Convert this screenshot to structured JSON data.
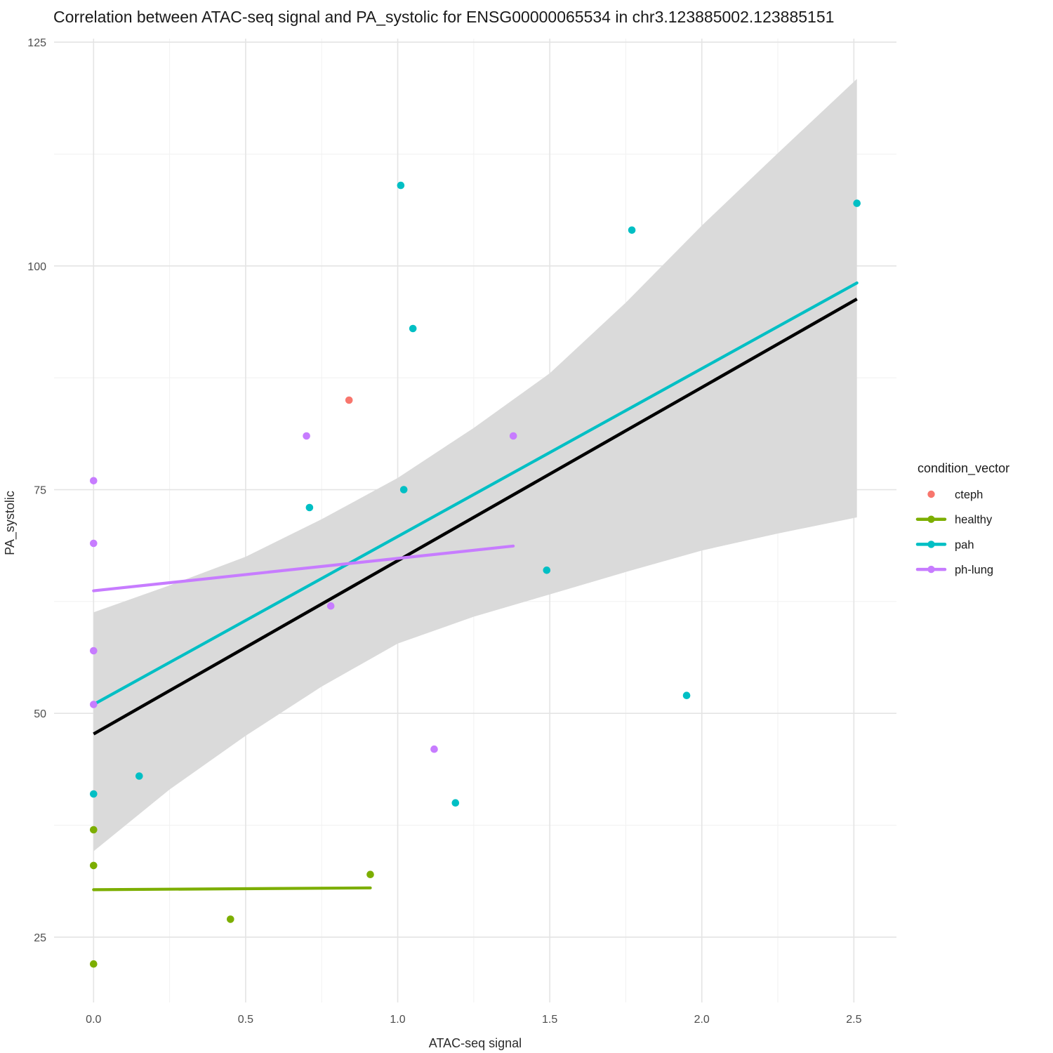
{
  "chart_data": {
    "type": "scatter",
    "title": "Correlation between ATAC-seq signal and PA_systolic for ENSG00000065534 in chr3.123885002.123885151",
    "xlabel": "ATAC-seq signal",
    "ylabel": "PA_systolic",
    "xlim": [
      -0.13,
      2.64
    ],
    "ylim": [
      17.7,
      125.4
    ],
    "x_ticks": [
      0.0,
      0.5,
      1.0,
      1.5,
      2.0,
      2.5
    ],
    "x_tick_labels": [
      "0.0",
      "0.5",
      "1.0",
      "1.5",
      "2.0",
      "2.5"
    ],
    "x_minor_ticks": [
      0.25,
      0.75,
      1.25,
      1.75,
      2.25
    ],
    "y_ticks": [
      25,
      50,
      75,
      100,
      125
    ],
    "y_tick_labels": [
      "25",
      "50",
      "75",
      "100",
      "125"
    ],
    "y_minor_ticks": [
      37.5,
      62.5,
      87.5,
      112.5
    ],
    "grid": true,
    "legend_position": "right",
    "series": [
      {
        "name": "cteph",
        "color": "#F8766D",
        "points": [
          [
            0.84,
            85
          ]
        ],
        "regression_line": null
      },
      {
        "name": "healthy",
        "color": "#7CAE00",
        "points": [
          [
            0,
            22
          ],
          [
            0,
            33
          ],
          [
            0,
            37
          ],
          [
            0.45,
            27
          ],
          [
            0.91,
            32
          ]
        ],
        "regression_line": [
          0,
          30.3,
          0.91,
          30.5
        ]
      },
      {
        "name": "pah",
        "color": "#00BFC4",
        "points": [
          [
            0,
            41
          ],
          [
            0.15,
            43
          ],
          [
            0.71,
            73
          ],
          [
            1.01,
            109
          ],
          [
            1.02,
            75
          ],
          [
            1.05,
            93
          ],
          [
            1.19,
            40
          ],
          [
            1.49,
            66
          ],
          [
            1.77,
            104
          ],
          [
            1.95,
            52
          ],
          [
            2.51,
            107
          ]
        ],
        "regression_line": [
          0,
          51.0,
          2.51,
          98.1
        ]
      },
      {
        "name": "ph-lung",
        "color": "#C77CFF",
        "points": [
          [
            0,
            51
          ],
          [
            0,
            57
          ],
          [
            0,
            69
          ],
          [
            0,
            76
          ],
          [
            0.7,
            81
          ],
          [
            0.78,
            62
          ],
          [
            1.12,
            46
          ],
          [
            1.38,
            81
          ]
        ],
        "regression_line": [
          0,
          63.7,
          1.38,
          68.7
        ]
      }
    ],
    "trend": {
      "name": "overall-fit",
      "color": "#000000",
      "line": [
        0,
        47.7,
        2.51,
        96.3
      ]
    },
    "ribbon": {
      "color": "#DADADA",
      "upper": [
        [
          0,
          61.3
        ],
        [
          0.25,
          64.3
        ],
        [
          0.5,
          67.5
        ],
        [
          0.75,
          71.7
        ],
        [
          1.0,
          76.3
        ],
        [
          1.25,
          81.9
        ],
        [
          1.5,
          88.0
        ],
        [
          1.75,
          95.9
        ],
        [
          2.0,
          104.5
        ],
        [
          2.25,
          112.6
        ],
        [
          2.51,
          120.9
        ]
      ],
      "lower": [
        [
          0,
          34.6
        ],
        [
          0.25,
          41.5
        ],
        [
          0.5,
          47.5
        ],
        [
          0.75,
          53.0
        ],
        [
          1.0,
          57.8
        ],
        [
          1.25,
          60.8
        ],
        [
          1.5,
          63.3
        ],
        [
          1.75,
          65.8
        ],
        [
          2.0,
          68.2
        ],
        [
          2.25,
          70.1
        ],
        [
          2.51,
          71.9
        ]
      ]
    },
    "legend": {
      "title": "condition_vector",
      "items": [
        {
          "label": "cteph",
          "color": "#F8766D",
          "has_line": false
        },
        {
          "label": "healthy",
          "color": "#7CAE00",
          "has_line": true
        },
        {
          "label": "pah",
          "color": "#00BFC4",
          "has_line": true
        },
        {
          "label": "ph-lung",
          "color": "#C77CFF",
          "has_line": true
        }
      ]
    },
    "style": {
      "background": "#FFFFFF",
      "grid_major_color": "#E4E4E4",
      "grid_minor_color": "#F1F1F1",
      "tick_label_color": "#4D4D4D",
      "title_color": "#1A1A1A"
    }
  }
}
